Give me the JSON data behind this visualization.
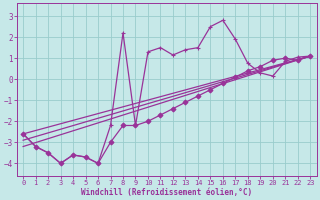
{
  "xlabel": "Windchill (Refroidissement éolien,°C)",
  "xlim": [
    -0.5,
    23.5
  ],
  "ylim": [
    -4.6,
    3.6
  ],
  "yticks": [
    -4,
    -3,
    -2,
    -1,
    0,
    1,
    2,
    3
  ],
  "xticks": [
    0,
    1,
    2,
    3,
    4,
    5,
    6,
    7,
    8,
    9,
    10,
    11,
    12,
    13,
    14,
    15,
    16,
    17,
    18,
    19,
    20,
    21,
    22,
    23
  ],
  "bg_color": "#c6e8e8",
  "line_color": "#993399",
  "grid_color": "#99cccc",
  "series": [
    {
      "comment": "Main jagged line with + markers - the temperature readings",
      "x": [
        0,
        1,
        2,
        3,
        4,
        5,
        6,
        7,
        8,
        9,
        10,
        11,
        12,
        13,
        14,
        15,
        16,
        17,
        18,
        19,
        20,
        21,
        22,
        23
      ],
      "y": [
        -2.6,
        -3.2,
        -3.5,
        -4.0,
        -3.6,
        -3.7,
        -4.0,
        -2.2,
        2.2,
        -2.2,
        1.3,
        1.5,
        1.15,
        1.4,
        1.5,
        2.5,
        2.8,
        1.9,
        0.75,
        0.3,
        0.15,
        0.85,
        1.05,
        1.1
      ],
      "marker": "+",
      "markersize": 3.5,
      "linewidth": 0.9,
      "linestyle": "-"
    },
    {
      "comment": "Lower curve with diamond markers",
      "x": [
        0,
        1,
        2,
        3,
        4,
        5,
        6,
        7,
        8,
        9,
        10,
        11,
        12,
        13,
        14,
        15,
        16,
        17,
        18,
        19,
        20,
        21,
        22,
        23
      ],
      "y": [
        -2.6,
        -3.2,
        -3.5,
        -4.0,
        -3.6,
        -3.7,
        -4.0,
        -3.0,
        -2.2,
        -2.2,
        -2.0,
        -1.7,
        -1.4,
        -1.1,
        -0.8,
        -0.5,
        -0.2,
        0.1,
        0.4,
        0.6,
        0.9,
        1.0,
        0.9,
        1.1
      ],
      "marker": "D",
      "markersize": 2.5,
      "linewidth": 0.9,
      "linestyle": "-"
    },
    {
      "comment": "Straight reference line 1",
      "x": [
        0,
        23
      ],
      "y": [
        -2.6,
        1.1
      ],
      "marker": null,
      "markersize": 0,
      "linewidth": 0.9,
      "linestyle": "-"
    },
    {
      "comment": "Straight reference line 2 - slightly offset",
      "x": [
        0,
        23
      ],
      "y": [
        -2.9,
        1.1
      ],
      "marker": null,
      "markersize": 0,
      "linewidth": 0.9,
      "linestyle": "-"
    },
    {
      "comment": "Straight reference line 3 - lowest",
      "x": [
        0,
        23
      ],
      "y": [
        -3.2,
        1.1
      ],
      "marker": null,
      "markersize": 0,
      "linewidth": 0.9,
      "linestyle": "-"
    }
  ]
}
